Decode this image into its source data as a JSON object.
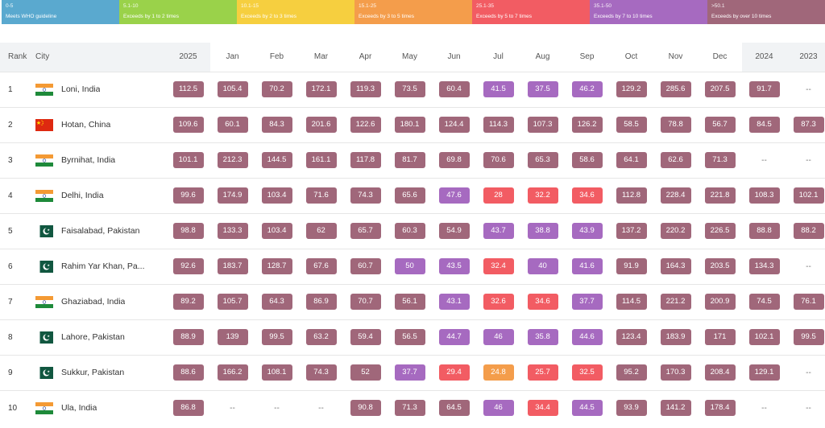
{
  "colors": {
    "c1": "#5aa9cf",
    "c2": "#9ad24a",
    "c3": "#f6cf3f",
    "c4": "#f49d4b",
    "c5": "#f25c63",
    "c6": "#a66ac0",
    "c7": "#a0677a"
  },
  "legend": [
    {
      "range": "0-5",
      "desc": "Meets WHO guideline",
      "color": "#5aa9cf"
    },
    {
      "range": "5.1-10",
      "desc": "Exceeds by 1 to 2 times",
      "color": "#9ad24a"
    },
    {
      "range": "10.1-15",
      "desc": "Exceeds by 2 to 3 times",
      "color": "#f6cf3f"
    },
    {
      "range": "15.1-25",
      "desc": "Exceeds by 3 to 5 times",
      "color": "#f49d4b"
    },
    {
      "range": "25.1-35",
      "desc": "Exceeds by 5 to 7 times",
      "color": "#f25c63"
    },
    {
      "range": "35.1-50",
      "desc": "Exceeds by 7 to 10 times",
      "color": "#a66ac0"
    },
    {
      "range": ">50.1",
      "desc": "Exceeds by over 10 times",
      "color": "#a0677a"
    }
  ],
  "headers": {
    "rank": "Rank",
    "city": "City",
    "y2025": "2025",
    "months": [
      "Jan",
      "Feb",
      "Mar",
      "Apr",
      "May",
      "Jun",
      "Jul",
      "Aug",
      "Sep",
      "Oct",
      "Nov",
      "Dec"
    ],
    "y2024": "2024",
    "y2023": "2023"
  },
  "rows": [
    {
      "rank": "1",
      "city": "Loni, India",
      "flag": "india-flag-icon",
      "y2025": "112.5",
      "months": [
        "105.4",
        "70.2",
        "172.1",
        "119.3",
        "73.5",
        "60.4",
        "41.5",
        "37.5",
        "46.2",
        "129.2",
        "285.6",
        "207.5"
      ],
      "y2024": "91.7",
      "y2023": "--"
    },
    {
      "rank": "2",
      "city": "Hotan, China",
      "flag": "china-flag-icon",
      "y2025": "109.6",
      "months": [
        "60.1",
        "84.3",
        "201.6",
        "122.6",
        "180.1",
        "124.4",
        "114.3",
        "107.3",
        "126.2",
        "58.5",
        "78.8",
        "56.7"
      ],
      "y2024": "84.5",
      "y2023": "87.3"
    },
    {
      "rank": "3",
      "city": "Byrnihat, India",
      "flag": "india-flag-icon",
      "y2025": "101.1",
      "months": [
        "212.3",
        "144.5",
        "161.1",
        "117.8",
        "81.7",
        "69.8",
        "70.6",
        "65.3",
        "58.6",
        "64.1",
        "62.6",
        "71.3"
      ],
      "y2024": "--",
      "y2023": "--"
    },
    {
      "rank": "4",
      "city": "Delhi, India",
      "flag": "india-flag-icon",
      "y2025": "99.6",
      "months": [
        "174.9",
        "103.4",
        "71.6",
        "74.3",
        "65.6",
        "47.6",
        "28",
        "32.2",
        "34.6",
        "112.8",
        "228.4",
        "221.8"
      ],
      "y2024": "108.3",
      "y2023": "102.1"
    },
    {
      "rank": "5",
      "city": "Faisalabad, Pakistan",
      "flag": "pakistan-flag-icon",
      "y2025": "98.8",
      "months": [
        "133.3",
        "103.4",
        "62",
        "65.7",
        "60.3",
        "54.9",
        "43.7",
        "38.8",
        "43.9",
        "137.2",
        "220.2",
        "226.5"
      ],
      "y2024": "88.8",
      "y2023": "88.2"
    },
    {
      "rank": "6",
      "city": "Rahim Yar Khan, Pa...",
      "flag": "pakistan-flag-icon",
      "y2025": "92.6",
      "months": [
        "183.7",
        "128.7",
        "67.6",
        "60.7",
        "50",
        "43.5",
        "32.4",
        "40",
        "41.6",
        "91.9",
        "164.3",
        "203.5"
      ],
      "y2024": "134.3",
      "y2023": "--"
    },
    {
      "rank": "7",
      "city": "Ghaziabad, India",
      "flag": "india-flag-icon",
      "y2025": "89.2",
      "months": [
        "105.7",
        "64.3",
        "86.9",
        "70.7",
        "56.1",
        "43.1",
        "32.6",
        "34.6",
        "37.7",
        "114.5",
        "221.2",
        "200.9"
      ],
      "y2024": "74.5",
      "y2023": "76.1"
    },
    {
      "rank": "8",
      "city": "Lahore, Pakistan",
      "flag": "pakistan-flag-icon",
      "y2025": "88.9",
      "months": [
        "139",
        "99.5",
        "63.2",
        "59.4",
        "56.5",
        "44.7",
        "46",
        "35.8",
        "44.6",
        "123.4",
        "183.9",
        "171"
      ],
      "y2024": "102.1",
      "y2023": "99.5"
    },
    {
      "rank": "9",
      "city": "Sukkur, Pakistan",
      "flag": "pakistan-flag-icon",
      "y2025": "88.6",
      "months": [
        "166.2",
        "108.1",
        "74.3",
        "52",
        "37.7",
        "29.4",
        "24.8",
        "25.7",
        "32.5",
        "95.2",
        "170.3",
        "208.4"
      ],
      "y2024": "129.1",
      "y2023": "--"
    },
    {
      "rank": "10",
      "city": "Ula, India",
      "flag": "india-flag-icon",
      "y2025": "86.8",
      "months": [
        "--",
        "--",
        "--",
        "90.8",
        "71.3",
        "64.5",
        "46",
        "34.4",
        "44.5",
        "93.9",
        "141.2",
        "178.4"
      ],
      "y2024": "--",
      "y2023": "--"
    }
  ]
}
